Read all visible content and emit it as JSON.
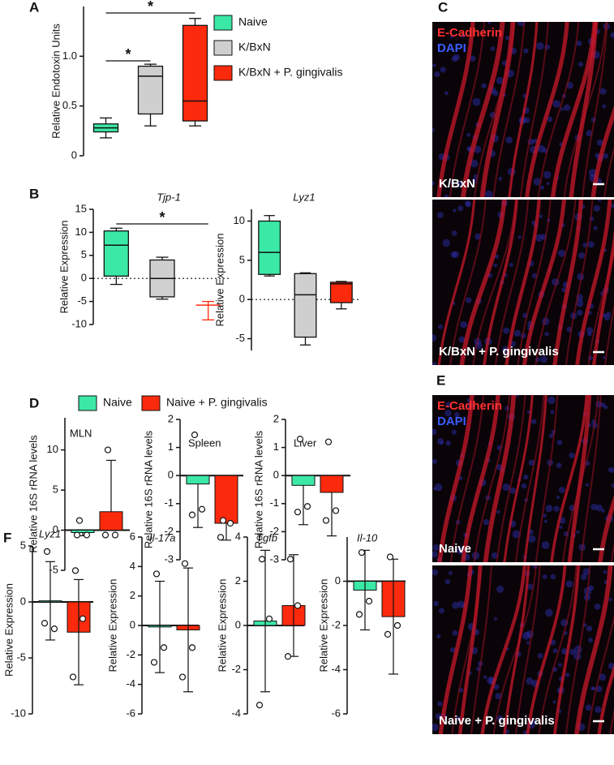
{
  "panel_labels": {
    "a": "A",
    "b": "B",
    "c": "C",
    "d": "D",
    "e": "E",
    "f": "F"
  },
  "images": [
    {
      "labels": [
        "E-Cadherin",
        "DAPI"
      ],
      "caption": "K/BxN"
    },
    {
      "caption": "K/BxN + P. gingivalis"
    },
    {
      "labels": [
        "E-Cadherin",
        "DAPI"
      ],
      "caption": "Naive"
    },
    {
      "caption": "Naive + P. gingivalis"
    }
  ],
  "chart_data": [
    {
      "type": "box",
      "ylabel": "Relative Endotoxin Units",
      "ylim": [
        0,
        1.5
      ],
      "yticks": [
        0,
        0.5,
        {
          "value": 1,
          "label": "1.0"
        }
      ],
      "legend": [
        {
          "name": "Naive",
          "color": "#3ce8a6"
        },
        {
          "name": "K/BxN",
          "color": "#cfcfcf"
        },
        {
          "name": "K/BxN + P. gingivalis",
          "color": "#fc2a0c"
        }
      ],
      "boxes": [
        {
          "color": "#3ce8a6",
          "min": 0.18,
          "q1": 0.24,
          "median": 0.28,
          "q3": 0.32,
          "max": 0.38
        },
        {
          "color": "#cfcfcf",
          "min": 0.3,
          "q1": 0.42,
          "median": 0.8,
          "q3": 0.9,
          "max": 0.92
        },
        {
          "color": "#fc2a0c",
          "min": 0.3,
          "q1": 0.35,
          "median": 0.55,
          "q3": 1.31,
          "max": 1.38
        }
      ],
      "annotations": [
        {
          "text": "*",
          "from": 0,
          "to": 2
        },
        {
          "text": "*",
          "from": 0,
          "to": 1
        }
      ]
    },
    {
      "type": "box",
      "title": "Tjp-1",
      "ylabel": "Relative Expression",
      "ylim": [
        -10,
        15
      ],
      "yticks": [
        -10,
        -5,
        0,
        5,
        10,
        15
      ],
      "zero_line": "dotted",
      "boxes": [
        {
          "color": "#3ce8a6",
          "min": -1.3,
          "q1": 0.5,
          "median": 7.2,
          "q3": 10.3,
          "max": 10.9
        },
        {
          "color": "#cfcfcf",
          "min": -4.5,
          "q1": -4,
          "median": 0,
          "q3": 4,
          "max": 4.6
        },
        {
          "color": "#fc2a0c",
          "line_color": "#fc2a0c",
          "min": -9,
          "q1": -5.8,
          "median": -5.8,
          "q3": -5.8,
          "max": -5
        }
      ],
      "annotations": [
        {
          "text": "*",
          "from": 0,
          "to": 2
        }
      ]
    },
    {
      "type": "box",
      "title": "Lyz1",
      "ylabel": "Relative Expression",
      "ylim": [
        -6.5,
        11.5
      ],
      "yticks": [
        -5,
        0,
        5,
        10
      ],
      "zero_line": "dotted",
      "boxes": [
        {
          "color": "#3ce8a6",
          "min": 3,
          "q1": 3.2,
          "median": 6,
          "q3": 10,
          "max": 10.7
        },
        {
          "color": "#cfcfcf",
          "min": -5.8,
          "q1": -4.8,
          "median": 0.6,
          "q3": 3.3,
          "max": 3.4
        },
        {
          "color": "#fc2a0c",
          "min": -1.2,
          "q1": -0.4,
          "median": 2,
          "q3": 2.2,
          "max": 2.3
        }
      ]
    },
    {
      "type": "bar",
      "title": "MLN",
      "ylabel": "Relative 16S rRNA levels",
      "ylim": [
        -5,
        14
      ],
      "yticks": [
        -5,
        0,
        5,
        10
      ],
      "zero_line": "solid",
      "error_bars": "outer",
      "legend": [
        {
          "name": "Naive",
          "color": "#3ce8a6"
        },
        {
          "name": "Naive + P. gingivalis",
          "color": "#fc2a0c"
        }
      ],
      "bars": [
        {
          "color": "#3ce8a6",
          "value": -0.3,
          "error": 0.4,
          "points": [
            1.2,
            -0.6,
            -0.6
          ]
        },
        {
          "color": "#fc2a0c",
          "value": 2.3,
          "error": 6.4,
          "points": [
            10,
            -0.6,
            -0.6
          ]
        }
      ]
    },
    {
      "type": "bar",
      "title": "Spleen",
      "ylabel": "Relative 16S rRNA levels",
      "ylim": [
        -3,
        2
      ],
      "yticks": [
        -3,
        -2,
        -1,
        0,
        1,
        2
      ],
      "zero_line": "solid",
      "error_bars": "outer",
      "bars": [
        {
          "color": "#3ce8a6",
          "value": -0.3,
          "error": 1.55,
          "points": [
            1.45,
            -1.2,
            -1.4
          ]
        },
        {
          "color": "#fc2a0c",
          "value": -1.7,
          "error": 0.6,
          "points": [
            -1.6,
            -1.7,
            -2.2
          ]
        }
      ]
    },
    {
      "type": "bar",
      "title": "Liver",
      "ylabel": "Relative 16S rRNA levels",
      "ylim": [
        -3,
        2
      ],
      "yticks": [
        -3,
        -2,
        -1,
        0,
        1,
        2
      ],
      "zero_line": "solid",
      "error_bars": "outer",
      "bars": [
        {
          "color": "#3ce8a6",
          "value": -0.35,
          "error": 1.4,
          "points": [
            1.3,
            -1.1,
            -1.3
          ]
        },
        {
          "color": "#fc2a0c",
          "value": -0.6,
          "error": 1.55,
          "points": [
            1.2,
            -1.25,
            -1.6
          ]
        }
      ]
    },
    {
      "type": "bar",
      "title": "Lyz1",
      "ylabel": "Relative Expression",
      "ylim": [
        -10,
        5
      ],
      "yticks": [
        -10,
        -5,
        0,
        5
      ],
      "zero_line": "solid",
      "error_bars": "both",
      "bars": [
        {
          "color": "#3ce8a6",
          "value": 0.1,
          "error": 3.5,
          "points": [
            4.5,
            -2.4,
            -1.9
          ]
        },
        {
          "color": "#fc2a0c",
          "value": -2.7,
          "error": 4.7,
          "points": [
            2.8,
            -1.5,
            -6.7
          ]
        }
      ]
    },
    {
      "type": "bar",
      "title": "Il-17a",
      "ylabel": "Relative Expression",
      "ylim": [
        -6,
        6
      ],
      "yticks": [
        -6,
        -4,
        -2,
        0,
        2,
        4,
        6
      ],
      "zero_line": "solid",
      "error_bars": "both",
      "bars": [
        {
          "color": "#3ce8a6",
          "value": -0.1,
          "error": 3.1,
          "points": [
            3.5,
            -1.5,
            -2.5
          ]
        },
        {
          "color": "#fc2a0c",
          "value": -0.3,
          "error": 4.2,
          "points": [
            4.2,
            -1.5,
            -3.5
          ]
        }
      ]
    },
    {
      "type": "bar",
      "title": "Tgfb",
      "ylabel": "Relative Expression",
      "ylim": [
        -4,
        4
      ],
      "yticks": [
        -4,
        -2,
        0,
        2,
        4
      ],
      "zero_line": "solid",
      "error_bars": "both",
      "bars": [
        {
          "color": "#3ce8a6",
          "value": 0.2,
          "error": 3.2,
          "points": [
            3,
            0.3,
            -3.6
          ]
        },
        {
          "color": "#fc2a0c",
          "value": 0.9,
          "error": 2.3,
          "points": [
            3,
            0.9,
            -1.4
          ]
        }
      ]
    },
    {
      "type": "bar",
      "title": "Il-10",
      "ylabel": "Relative Expression",
      "ylim": [
        -6,
        2
      ],
      "yticks": [
        -6,
        -4,
        -2,
        0
      ],
      "zero_line": "solid",
      "error_bars": "both",
      "bars": [
        {
          "color": "#3ce8a6",
          "value": -0.4,
          "error": 1.8,
          "points": [
            1.3,
            -0.9,
            -1.5
          ]
        },
        {
          "color": "#fc2a0c",
          "value": -1.6,
          "error": 2.6,
          "points": [
            1.1,
            -2,
            -2.4
          ]
        }
      ]
    }
  ]
}
